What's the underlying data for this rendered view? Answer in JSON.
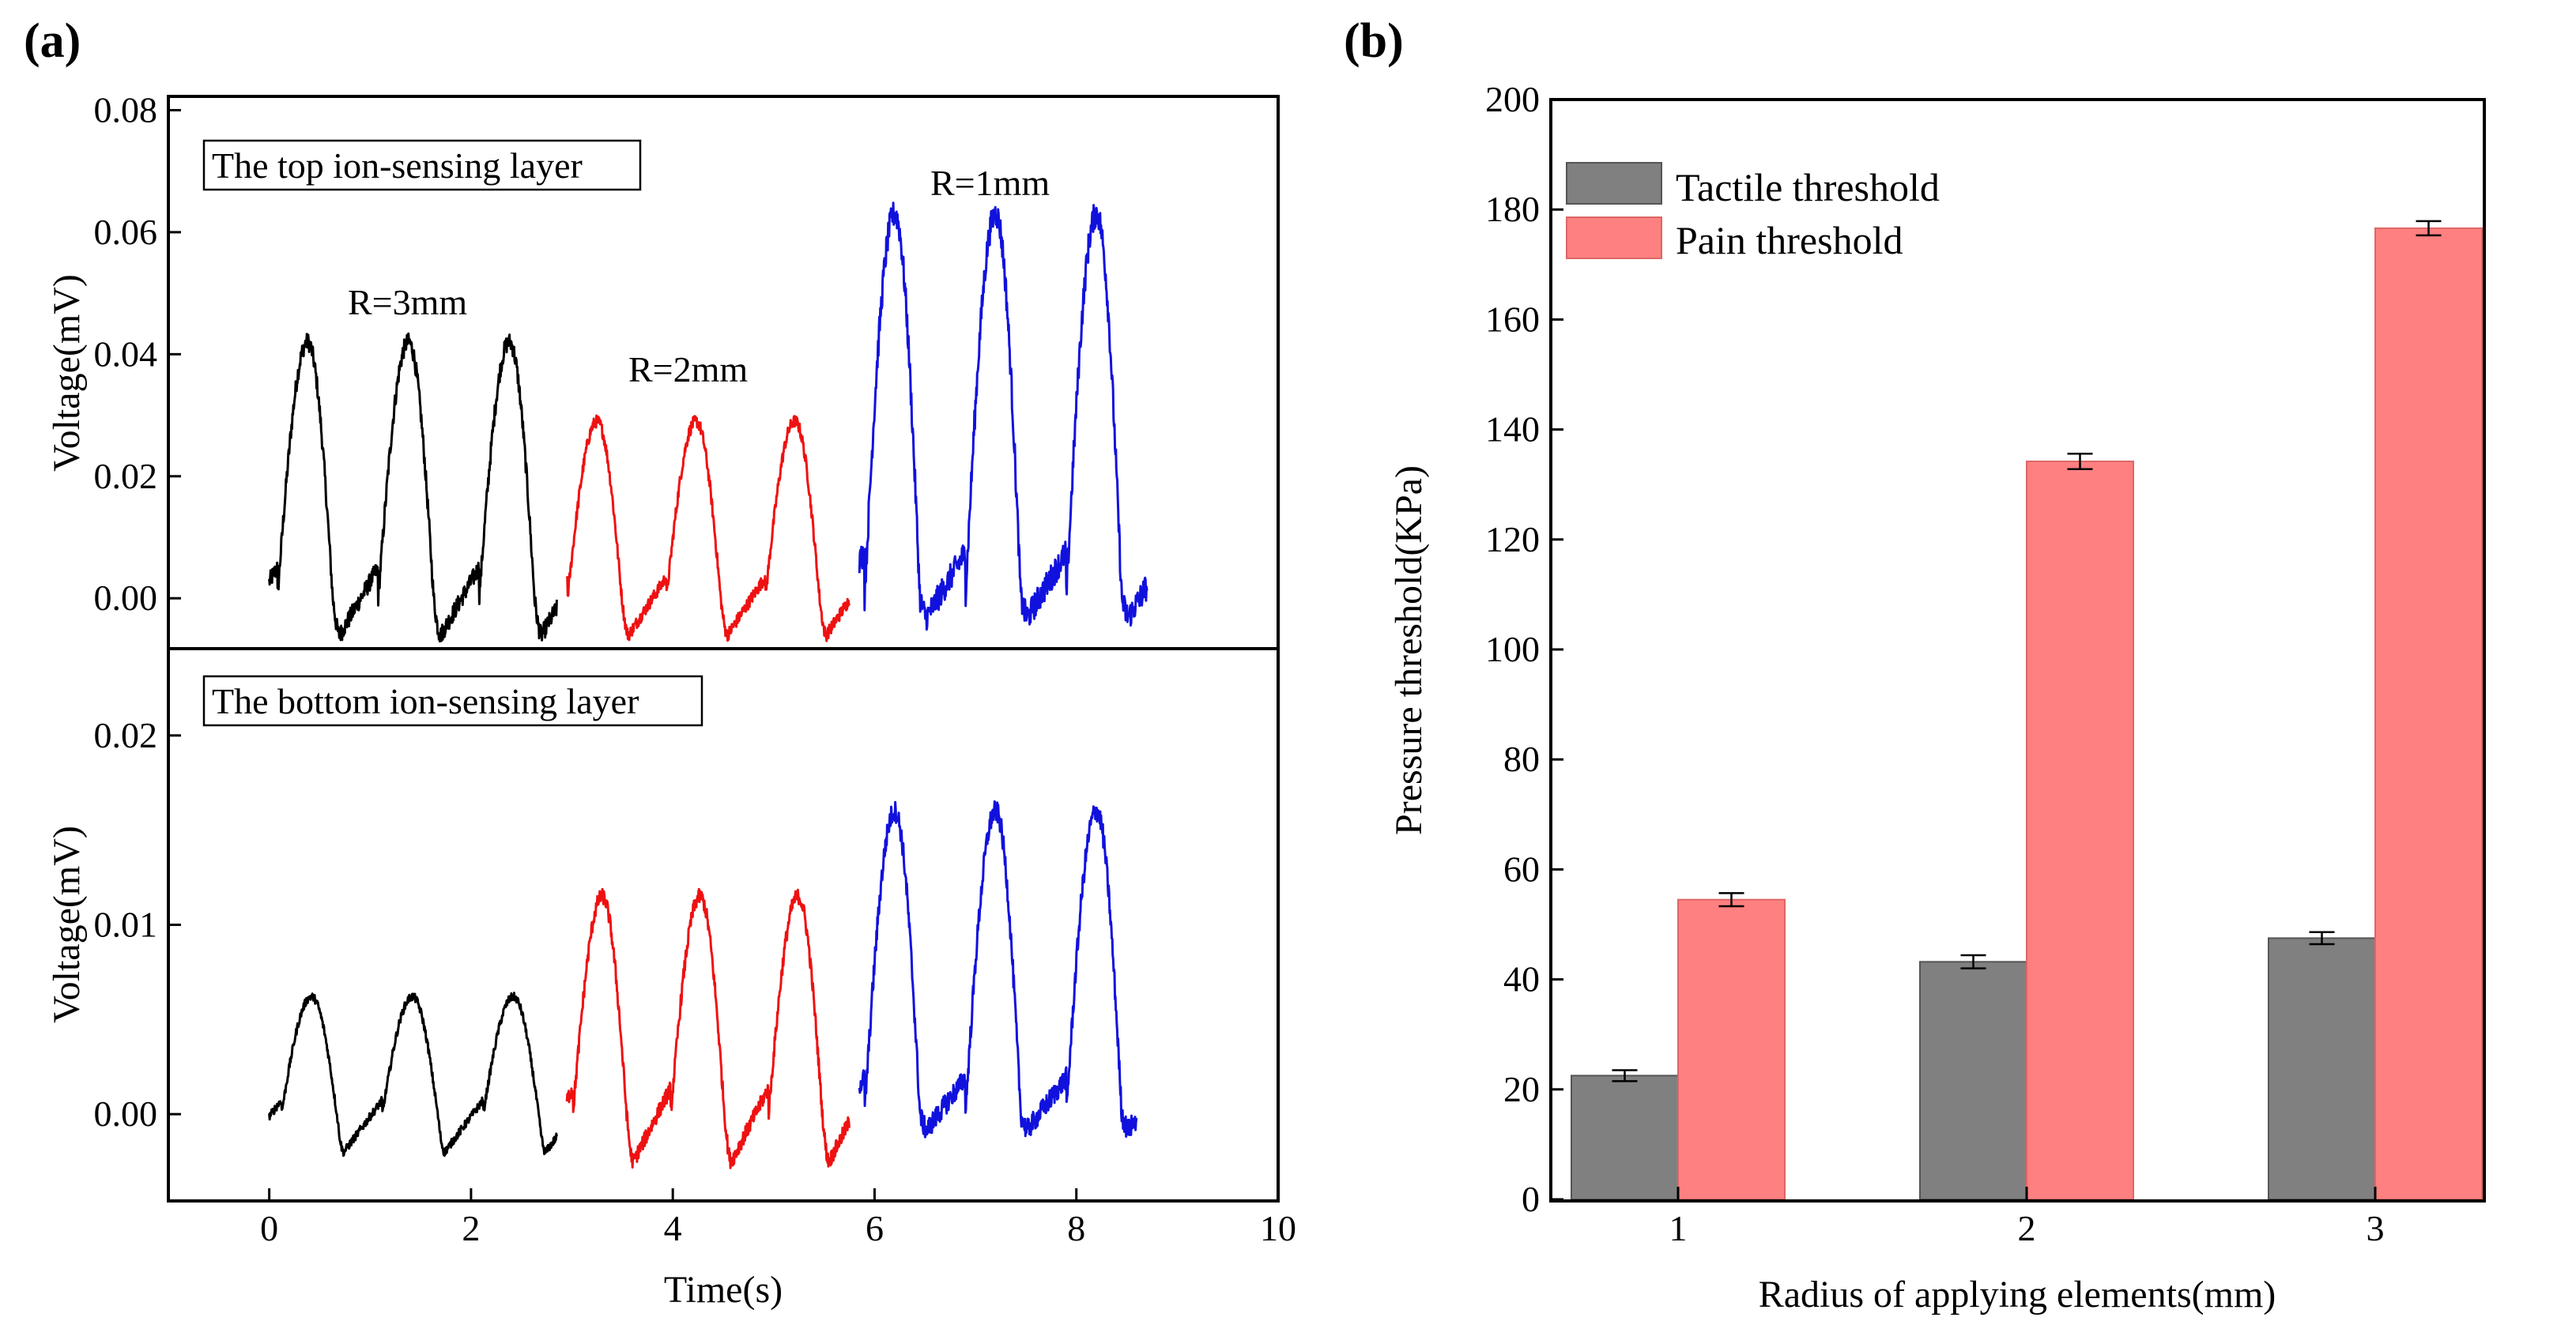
{
  "panels": {
    "a": "(a)",
    "b": "(b)"
  },
  "colors": {
    "r3": "#000000",
    "r2": "#ee1111",
    "r1": "#1111dd",
    "tactile": "#808080",
    "pain": "#ff8080"
  },
  "chart_data": [
    {
      "type": "line",
      "panel": "(a) top",
      "title": "The top ion-sensing layer",
      "xlabel": "Time(s)",
      "ylabel": "Voltage(mV)",
      "xlim": [
        -1,
        10
      ],
      "ylim": [
        -0.008,
        0.082
      ],
      "xticks": [
        0,
        2,
        4,
        6,
        8,
        10
      ],
      "yticks": [
        0.0,
        0.02,
        0.04,
        0.06,
        0.08
      ],
      "ytick_labels": [
        "0.00",
        "0.02",
        "0.04",
        "0.06",
        "0.08"
      ],
      "annotations": [
        "R=3mm",
        "R=2mm",
        "R=1mm"
      ],
      "series": [
        {
          "name": "R=3mm",
          "color": "#000000",
          "t_start": 0.0,
          "t_end": 2.85,
          "period": 1.0,
          "first_peak": 0.38,
          "peak": 0.042,
          "trough": -0.006
        },
        {
          "name": "R=2mm",
          "color": "#ee1111",
          "t_start": 2.95,
          "t_end": 5.75,
          "period": 0.98,
          "first_peak": 3.25,
          "peak": 0.029,
          "trough": -0.006
        },
        {
          "name": "R=1mm",
          "color": "#1111dd",
          "t_start": 5.85,
          "t_end": 8.7,
          "period": 1.0,
          "first_peak": 6.2,
          "peak": 0.063,
          "trough": -0.003
        }
      ]
    },
    {
      "type": "line",
      "panel": "(a) bottom",
      "title": "The bottom ion-sensing layer",
      "xlabel": "Time(s)",
      "ylabel": "Voltage(mV)",
      "xlim": [
        -1,
        10
      ],
      "ylim": [
        -0.0045,
        0.0245
      ],
      "xticks": [
        0,
        2,
        4,
        6,
        8,
        10
      ],
      "yticks": [
        0.0,
        0.01,
        0.02
      ],
      "ytick_labels": [
        "0.00",
        "0.01",
        "0.02"
      ],
      "series": [
        {
          "name": "R=3mm",
          "color": "#000000",
          "t_start": 0.0,
          "t_end": 2.85,
          "period": 1.0,
          "first_peak": 0.42,
          "peak": 0.0062,
          "trough": -0.002
        },
        {
          "name": "R=2mm",
          "color": "#ee1111",
          "t_start": 2.95,
          "t_end": 5.75,
          "period": 0.97,
          "first_peak": 3.3,
          "peak": 0.0115,
          "trough": -0.0025
        },
        {
          "name": "R=1mm",
          "color": "#1111dd",
          "t_start": 5.85,
          "t_end": 8.6,
          "period": 1.0,
          "first_peak": 6.2,
          "peak": 0.016,
          "trough": -0.0008
        }
      ]
    },
    {
      "type": "bar",
      "panel": "(b)",
      "xlabel": "Radius of applying elements(mm)",
      "ylabel": "Pressure threshold(KPa)",
      "ylim": [
        0,
        200
      ],
      "yticks": [
        0,
        20,
        40,
        60,
        80,
        100,
        120,
        140,
        160,
        180,
        200
      ],
      "categories": [
        "1",
        "2",
        "3"
      ],
      "series": [
        {
          "name": "Tactile threshold",
          "color": "#808080",
          "values": [
            22.5,
            43.2,
            47.5
          ],
          "errors": [
            1.0,
            1.2,
            1.1
          ]
        },
        {
          "name": "Pain threshold",
          "color": "#ff8080",
          "values": [
            54.5,
            134.2,
            176.6
          ],
          "errors": [
            1.2,
            1.4,
            1.3
          ]
        }
      ],
      "legend": "top-left"
    }
  ]
}
